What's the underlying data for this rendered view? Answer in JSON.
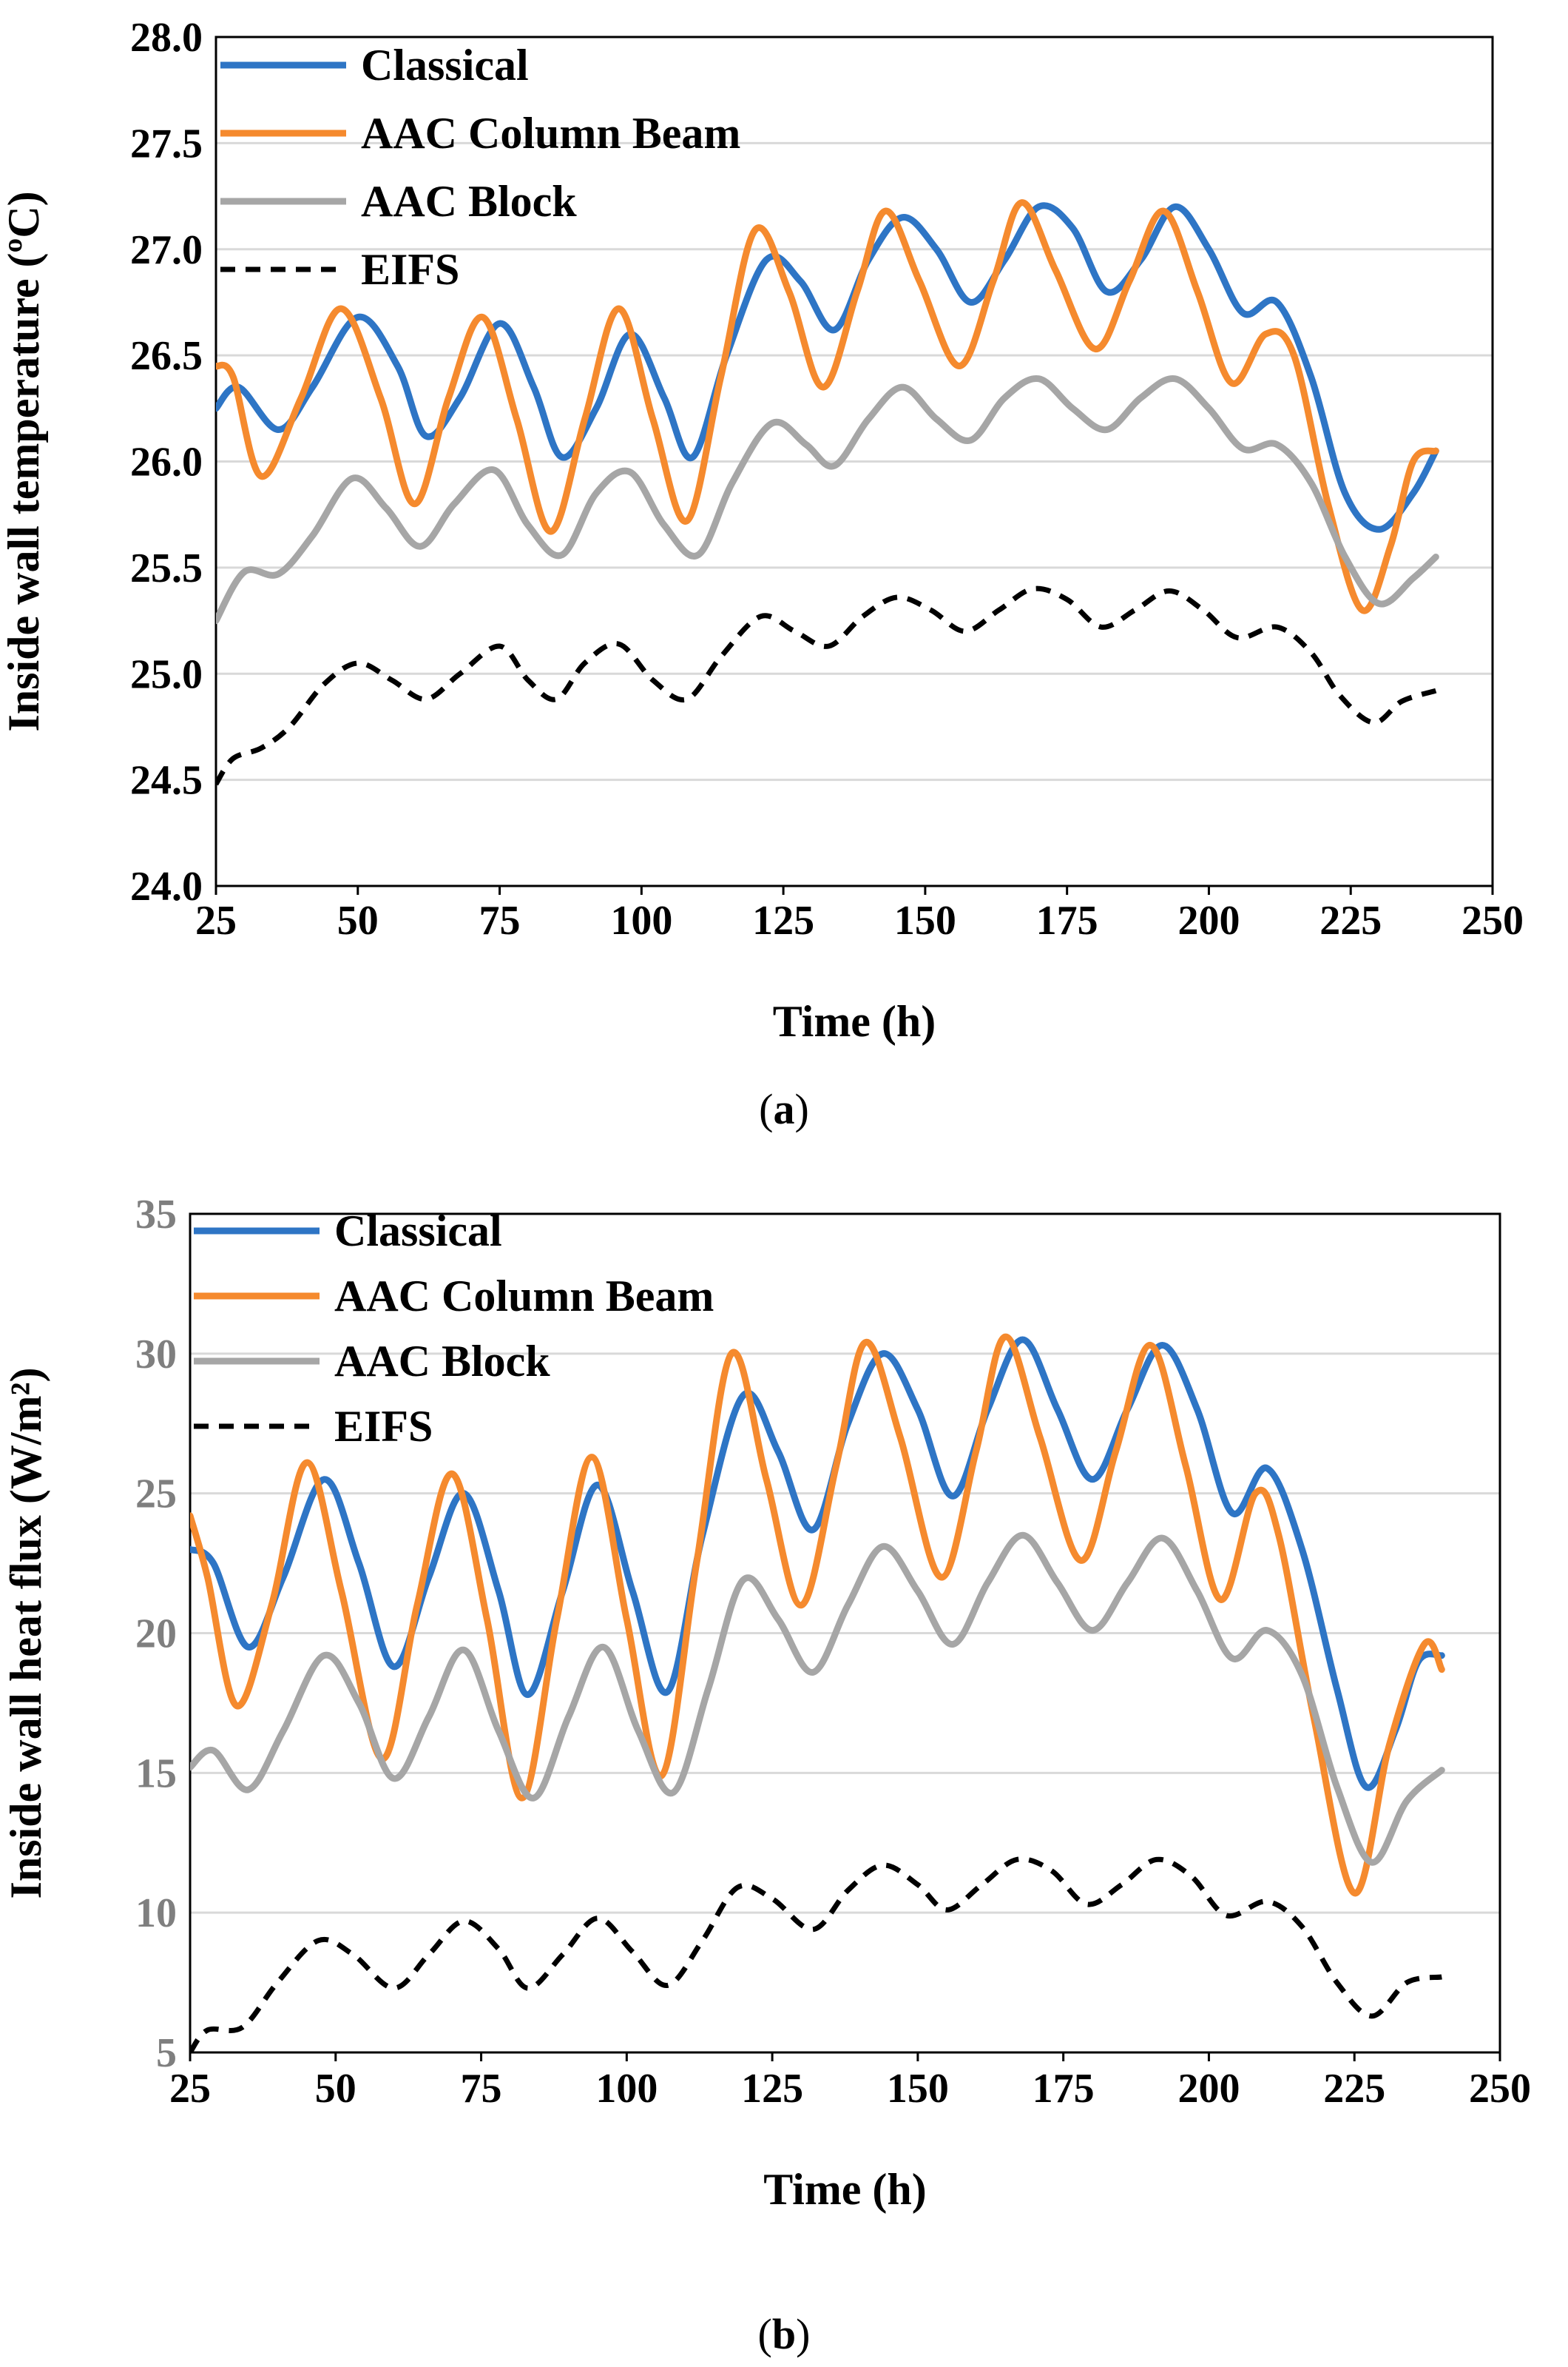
{
  "chart_data": [
    {
      "type": "line",
      "panel_label": "a",
      "xlabel": "Time (h)",
      "ylabel": "Inside wall temperature (ºC)",
      "xlim": [
        25,
        250
      ],
      "ylim": [
        24.0,
        28.0
      ],
      "xticks": [
        "25",
        "50",
        "75",
        "100",
        "125",
        "150",
        "175",
        "200",
        "225",
        "250"
      ],
      "yticks": [
        "24.0",
        "24.5",
        "25.0",
        "25.5",
        "26.0",
        "26.5",
        "27.0",
        "27.5",
        "28.0"
      ],
      "grid": "horizontal",
      "legend_position": "top-left",
      "series": [
        {
          "name": "Classical",
          "color": "#2E75C5",
          "dash": "solid",
          "x": [
            25,
            29,
            36,
            42,
            50,
            57,
            62,
            68,
            75,
            81,
            86,
            92,
            98,
            104,
            109,
            115,
            122,
            128,
            134,
            140,
            146,
            152,
            158,
            164,
            170,
            176,
            182,
            188,
            194,
            200,
            206,
            212,
            218,
            224,
            230,
            236,
            240
          ],
          "y": [
            26.25,
            26.35,
            26.15,
            26.35,
            26.68,
            26.45,
            26.12,
            26.3,
            26.65,
            26.35,
            26.02,
            26.25,
            26.6,
            26.3,
            26.02,
            26.5,
            26.95,
            26.85,
            26.62,
            26.95,
            27.15,
            27.0,
            26.75,
            26.95,
            27.2,
            27.1,
            26.8,
            26.95,
            27.2,
            27.0,
            26.7,
            26.75,
            26.4,
            25.85,
            25.68,
            25.85,
            26.05
          ]
        },
        {
          "name": "AAC Column Beam",
          "color": "#F58A2E",
          "dash": "solid",
          "x": [
            25,
            28,
            33,
            40,
            47,
            54,
            60,
            66,
            72,
            78,
            84,
            90,
            96,
            102,
            108,
            114,
            120,
            126,
            132,
            138,
            143,
            149,
            156,
            162,
            167,
            173,
            180,
            186,
            192,
            198,
            204,
            210,
            215,
            221,
            227,
            232,
            236,
            240
          ],
          "y": [
            26.45,
            26.4,
            25.93,
            26.3,
            26.72,
            26.3,
            25.8,
            26.3,
            26.68,
            26.2,
            25.67,
            26.2,
            26.72,
            26.2,
            25.72,
            26.4,
            27.09,
            26.8,
            26.35,
            26.8,
            27.18,
            26.85,
            26.45,
            26.85,
            27.22,
            26.9,
            26.53,
            26.85,
            27.18,
            26.8,
            26.37,
            26.6,
            26.5,
            25.8,
            25.3,
            25.6,
            26.0,
            26.05
          ]
        },
        {
          "name": "AAC Block",
          "color": "#A6A6A6",
          "dash": "solid",
          "x": [
            25,
            30,
            36,
            42,
            49,
            55,
            61,
            67,
            74,
            80,
            86,
            92,
            98,
            104,
            110,
            116,
            123,
            129,
            134,
            140,
            146,
            152,
            158,
            164,
            170,
            176,
            182,
            188,
            194,
            200,
            206,
            212,
            218,
            224,
            230,
            236,
            240
          ],
          "y": [
            25.25,
            25.48,
            25.47,
            25.65,
            25.92,
            25.78,
            25.6,
            25.8,
            25.96,
            25.7,
            25.56,
            25.85,
            25.95,
            25.7,
            25.56,
            25.9,
            26.18,
            26.08,
            25.98,
            26.2,
            26.35,
            26.2,
            26.1,
            26.3,
            26.39,
            26.25,
            26.15,
            26.3,
            26.39,
            26.25,
            26.06,
            26.08,
            25.9,
            25.55,
            25.33,
            25.45,
            25.55
          ]
        },
        {
          "name": "EIFS",
          "color": "#000000",
          "dash": "dashed",
          "x": [
            25,
            28,
            33,
            38,
            44,
            50,
            56,
            62,
            68,
            75,
            80,
            85,
            90,
            96,
            102,
            108,
            114,
            121,
            127,
            133,
            139,
            145,
            151,
            157,
            163,
            169,
            175,
            181,
            187,
            193,
            199,
            205,
            212,
            218,
            223,
            229,
            234,
            240
          ],
          "y": [
            24.48,
            24.6,
            24.65,
            24.75,
            24.95,
            25.05,
            24.97,
            24.88,
            25.0,
            25.13,
            24.97,
            24.88,
            25.05,
            25.14,
            24.97,
            24.88,
            25.08,
            25.27,
            25.2,
            25.13,
            25.27,
            25.36,
            25.3,
            25.2,
            25.3,
            25.4,
            25.35,
            25.22,
            25.3,
            25.39,
            25.3,
            25.17,
            25.22,
            25.1,
            24.9,
            24.77,
            24.87,
            24.92
          ]
        }
      ]
    },
    {
      "type": "line",
      "panel_label": "b",
      "xlabel": "Time (h)",
      "ylabel": "Inside wall heat flux (W/m²)",
      "xlim": [
        25,
        250
      ],
      "ylim": [
        5,
        35
      ],
      "xticks": [
        "25",
        "50",
        "75",
        "100",
        "125",
        "150",
        "175",
        "200",
        "225",
        "250"
      ],
      "yticks": [
        "5",
        "10",
        "15",
        "20",
        "25",
        "30",
        "35"
      ],
      "grid": "horizontal",
      "legend_position": "top-left",
      "series": [
        {
          "name": "Classical",
          "color": "#2E75C5",
          "dash": "solid",
          "x": [
            25,
            29,
            35,
            41,
            48,
            54,
            60,
            66,
            72,
            78,
            83,
            89,
            95,
            101,
            107,
            113,
            120,
            126,
            132,
            138,
            144,
            150,
            156,
            162,
            168,
            174,
            180,
            186,
            192,
            198,
            204,
            210,
            216,
            222,
            227,
            232,
            236,
            240
          ],
          "y": [
            23,
            22.5,
            19.5,
            22,
            25.5,
            22.5,
            18.8,
            22,
            25,
            21.5,
            17.8,
            21.5,
            25.3,
            21.5,
            17.9,
            23.5,
            28.5,
            26.5,
            23.7,
            27.5,
            30,
            28,
            24.9,
            28,
            30.5,
            28,
            25.5,
            28,
            30.3,
            28,
            24.3,
            25.9,
            23,
            18,
            14.5,
            16.5,
            19,
            19.2
          ]
        },
        {
          "name": "AAC Column Beam",
          "color": "#F58A2E",
          "dash": "solid",
          "x": [
            25,
            28,
            33,
            39,
            45,
            51,
            58,
            64,
            70,
            76,
            82,
            88,
            94,
            100,
            106,
            112,
            118,
            124,
            130,
            136,
            141,
            147,
            154,
            160,
            165,
            171,
            178,
            184,
            190,
            196,
            202,
            208,
            212,
            218,
            225,
            231,
            237,
            240
          ],
          "y": [
            24.2,
            22,
            17.4,
            21,
            26.1,
            21.5,
            15.5,
            21,
            25.7,
            20.5,
            14.1,
            20.5,
            26.3,
            20.5,
            14.9,
            22.5,
            30,
            25.5,
            21,
            26,
            30.4,
            27,
            22,
            26.5,
            30.6,
            27,
            22.6,
            26.5,
            30.3,
            26,
            21.2,
            25,
            23.5,
            17,
            10.7,
            16,
            19.6,
            18.7
          ]
        },
        {
          "name": "AAC Block",
          "color": "#A6A6A6",
          "dash": "solid",
          "x": [
            25,
            29,
            35,
            41,
            48,
            54,
            60,
            66,
            72,
            78,
            84,
            90,
            96,
            102,
            108,
            114,
            120,
            126,
            132,
            138,
            144,
            150,
            156,
            162,
            168,
            174,
            180,
            186,
            192,
            198,
            204,
            210,
            216,
            222,
            228,
            234,
            240
          ],
          "y": [
            15.2,
            15.8,
            14.4,
            16.5,
            19.2,
            17.5,
            14.8,
            17,
            19.4,
            16.5,
            14.1,
            17,
            19.5,
            16.5,
            14.3,
            18,
            21.9,
            20.5,
            18.6,
            21,
            23.1,
            21.5,
            19.6,
            21.8,
            23.5,
            21.8,
            20.1,
            21.8,
            23.4,
            21.5,
            19.1,
            20.1,
            18.5,
            14.5,
            11.8,
            14,
            15.1
          ]
        },
        {
          "name": "EIFS",
          "color": "#000000",
          "dash": "dashed",
          "x": [
            25,
            28,
            34,
            40,
            47,
            53,
            60,
            66,
            72,
            78,
            83,
            89,
            95,
            101,
            107,
            113,
            119,
            125,
            132,
            138,
            144,
            150,
            155,
            161,
            167,
            173,
            179,
            185,
            191,
            197,
            203,
            210,
            216,
            222,
            228,
            234,
            240
          ],
          "y": [
            5,
            5.8,
            5.9,
            7.5,
            9,
            8.5,
            7.3,
            8.5,
            9.7,
            8.7,
            7.3,
            8.5,
            9.8,
            8.6,
            7.4,
            9,
            10.9,
            10.5,
            9.4,
            10.8,
            11.7,
            11,
            10.1,
            11,
            11.9,
            11.5,
            10.3,
            11,
            11.9,
            11.3,
            9.9,
            10.4,
            9.5,
            7.5,
            6.3,
            7.5,
            7.7
          ]
        }
      ]
    }
  ],
  "captions": {
    "a": "a",
    "b": "b"
  }
}
